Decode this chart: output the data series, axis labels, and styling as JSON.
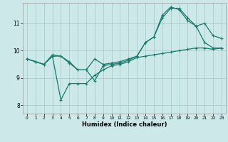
{
  "xlabel": "Humidex (Indice chaleur)",
  "background_color": "#cce8e8",
  "grid_color": "#aacccc",
  "line_color": "#1a7a6e",
  "xlim": [
    -0.5,
    23.5
  ],
  "ylim": [
    7.7,
    11.75
  ],
  "yticks": [
    8,
    9,
    10,
    11
  ],
  "xticks": [
    0,
    1,
    2,
    3,
    4,
    5,
    6,
    7,
    8,
    9,
    10,
    11,
    12,
    13,
    14,
    15,
    16,
    17,
    18,
    19,
    20,
    21,
    22,
    23
  ],
  "series1_x": [
    0,
    1,
    2,
    3,
    4,
    5,
    6,
    7,
    8,
    9,
    10,
    11,
    12,
    13,
    14,
    15,
    16,
    17,
    18,
    19,
    20,
    21,
    22,
    23
  ],
  "series1_y": [
    9.7,
    9.6,
    9.5,
    9.8,
    8.2,
    8.8,
    8.8,
    8.8,
    9.1,
    9.3,
    9.45,
    9.5,
    9.6,
    9.75,
    9.8,
    9.85,
    9.9,
    9.95,
    10.0,
    10.05,
    10.1,
    10.1,
    10.05,
    10.1
  ],
  "series2_x": [
    0,
    1,
    2,
    3,
    4,
    5,
    6,
    7,
    8,
    9,
    10,
    11,
    12,
    13,
    14,
    15,
    16,
    17,
    18,
    19,
    20,
    21,
    22,
    23
  ],
  "series2_y": [
    9.7,
    9.6,
    9.5,
    9.8,
    9.8,
    9.55,
    9.3,
    9.3,
    9.7,
    9.5,
    9.55,
    9.6,
    9.7,
    9.8,
    10.3,
    10.5,
    11.2,
    11.55,
    11.55,
    11.2,
    10.9,
    11.0,
    10.55,
    10.45
  ],
  "series3_x": [
    0,
    1,
    2,
    3,
    4,
    5,
    6,
    7,
    8,
    9,
    10,
    11,
    12,
    13,
    14,
    15,
    16,
    17,
    18,
    19,
    20,
    21,
    22,
    23
  ],
  "series3_y": [
    9.7,
    9.6,
    9.5,
    9.85,
    9.8,
    9.6,
    9.3,
    9.3,
    8.9,
    9.45,
    9.5,
    9.55,
    9.65,
    9.8,
    10.3,
    10.5,
    11.3,
    11.6,
    11.5,
    11.1,
    10.9,
    10.3,
    10.1,
    10.1
  ]
}
